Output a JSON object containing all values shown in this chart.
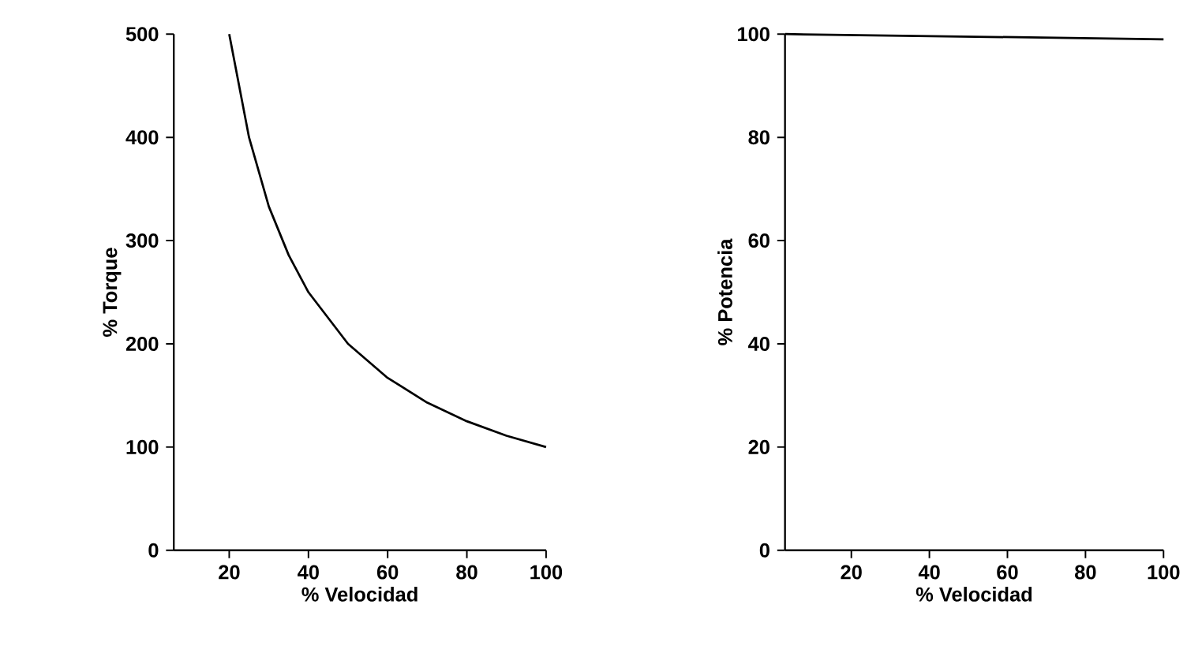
{
  "chart_data": [
    {
      "type": "line",
      "xlabel": "% Velocidad",
      "ylabel": "% Torque",
      "color": "#000000",
      "x": [
        20,
        25,
        30,
        35,
        40,
        50,
        60,
        70,
        80,
        90,
        100
      ],
      "values": [
        500,
        400,
        333,
        286,
        250,
        200,
        167,
        143,
        125,
        111,
        100
      ],
      "xlim": [
        6,
        100
      ],
      "ylim": [
        0,
        500
      ],
      "xticks": [
        20,
        40,
        60,
        80,
        100
      ],
      "yticks": [
        0,
        100,
        200,
        300,
        400,
        500
      ],
      "grid": false,
      "marker": "none"
    },
    {
      "type": "line",
      "xlabel": "% Velocidad",
      "ylabel": "% Potencia",
      "color": "#000000",
      "x": [
        3,
        100
      ],
      "values": [
        100,
        99
      ],
      "xlim": [
        3,
        100
      ],
      "ylim": [
        0,
        100
      ],
      "xticks": [
        20,
        40,
        60,
        80,
        100
      ],
      "yticks": [
        0,
        20,
        40,
        60,
        80,
        100
      ],
      "grid": false,
      "marker": "none"
    }
  ]
}
